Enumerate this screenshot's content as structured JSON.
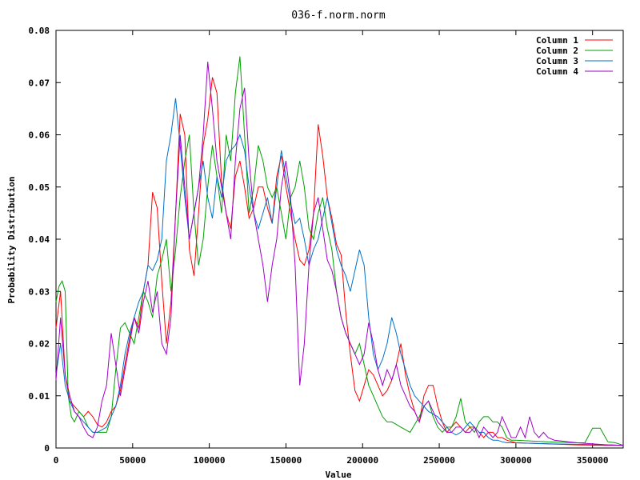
{
  "chart_data": {
    "type": "line",
    "title": "036-f.norm.norm",
    "xlabel": "Value",
    "ylabel": "Probability Distribution",
    "xlim": [
      0,
      370000
    ],
    "ylim": [
      0,
      0.08
    ],
    "xticks": [
      0,
      50000,
      100000,
      150000,
      200000,
      250000,
      300000,
      350000
    ],
    "xtick_labels": [
      "0",
      "50000",
      "100000",
      "150000",
      "200000",
      "250000",
      "300000",
      "350000"
    ],
    "yticks": [
      0,
      0.01,
      0.02,
      0.03,
      0.04,
      0.05,
      0.06,
      0.07,
      0.08
    ],
    "ytick_labels": [
      "0",
      "0.01",
      "0.02",
      "0.03",
      "0.04",
      "0.05",
      "0.06",
      "0.07",
      "0.08"
    ],
    "grid": false,
    "legend_position": "top-right",
    "series": [
      {
        "name": "Column 1",
        "color": "#ff0000",
        "x": [
          0,
          3000,
          6000,
          9000,
          12000,
          15000,
          18000,
          21000,
          24000,
          27000,
          30000,
          33000,
          36000,
          39000,
          42000,
          45000,
          48000,
          51000,
          54000,
          57000,
          60000,
          63000,
          66000,
          69000,
          72000,
          75000,
          78000,
          81000,
          84000,
          87000,
          90000,
          93000,
          96000,
          99000,
          102000,
          105000,
          108000,
          111000,
          114000,
          117000,
          120000,
          123000,
          126000,
          129000,
          132000,
          135000,
          138000,
          141000,
          144000,
          147000,
          150000,
          153000,
          156000,
          159000,
          162000,
          165000,
          168000,
          171000,
          174000,
          177000,
          180000,
          183000,
          186000,
          189000,
          192000,
          195000,
          198000,
          201000,
          204000,
          207000,
          210000,
          213000,
          216000,
          219000,
          222000,
          225000,
          228000,
          231000,
          234000,
          237000,
          240000,
          243000,
          246000,
          249000,
          252000,
          255000,
          258000,
          261000,
          264000,
          267000,
          270000,
          273000,
          276000,
          279000,
          282000,
          285000,
          288000,
          291000,
          294000,
          300000,
          320000,
          340000,
          360000,
          370000
        ],
        "y": [
          0.023,
          0.03,
          0.014,
          0.009,
          0.008,
          0.007,
          0.006,
          0.007,
          0.006,
          0.0045,
          0.004,
          0.005,
          0.007,
          0.008,
          0.011,
          0.016,
          0.021,
          0.025,
          0.023,
          0.03,
          0.035,
          0.049,
          0.046,
          0.032,
          0.02,
          0.028,
          0.045,
          0.064,
          0.06,
          0.038,
          0.033,
          0.045,
          0.058,
          0.063,
          0.071,
          0.068,
          0.051,
          0.045,
          0.042,
          0.052,
          0.055,
          0.05,
          0.044,
          0.046,
          0.05,
          0.05,
          0.046,
          0.043,
          0.052,
          0.056,
          0.05,
          0.045,
          0.04,
          0.036,
          0.035,
          0.038,
          0.045,
          0.062,
          0.056,
          0.048,
          0.044,
          0.039,
          0.037,
          0.026,
          0.018,
          0.011,
          0.009,
          0.012,
          0.015,
          0.014,
          0.012,
          0.01,
          0.011,
          0.013,
          0.016,
          0.02,
          0.014,
          0.01,
          0.007,
          0.005,
          0.01,
          0.012,
          0.012,
          0.008,
          0.005,
          0.003,
          0.004,
          0.005,
          0.004,
          0.003,
          0.004,
          0.004,
          0.003,
          0.002,
          0.003,
          0.003,
          0.002,
          0.002,
          0.0015,
          0.001,
          0.0008,
          0.0006,
          0.0005,
          0.0005
        ]
      },
      {
        "name": "Column 2",
        "color": "#00a000",
        "x": [
          0,
          2000,
          4000,
          6000,
          8000,
          10000,
          12000,
          15000,
          18000,
          21000,
          24000,
          27000,
          30000,
          33000,
          36000,
          39000,
          42000,
          45000,
          48000,
          51000,
          54000,
          57000,
          60000,
          63000,
          66000,
          69000,
          72000,
          75000,
          78000,
          81000,
          84000,
          87000,
          90000,
          93000,
          96000,
          99000,
          102000,
          105000,
          108000,
          111000,
          114000,
          117000,
          120000,
          123000,
          126000,
          129000,
          132000,
          135000,
          138000,
          141000,
          144000,
          147000,
          150000,
          153000,
          156000,
          159000,
          162000,
          165000,
          168000,
          171000,
          174000,
          177000,
          180000,
          183000,
          186000,
          189000,
          192000,
          195000,
          198000,
          201000,
          204000,
          207000,
          210000,
          213000,
          216000,
          219000,
          222000,
          225000,
          228000,
          231000,
          234000,
          237000,
          240000,
          243000,
          246000,
          249000,
          252000,
          255000,
          258000,
          261000,
          264000,
          267000,
          270000,
          273000,
          276000,
          279000,
          282000,
          285000,
          288000,
          291000,
          294000,
          297000,
          300000,
          320000,
          340000,
          345000,
          350000,
          355000,
          360000,
          365000,
          370000
        ],
        "y": [
          0.028,
          0.031,
          0.032,
          0.03,
          0.01,
          0.006,
          0.005,
          0.007,
          0.006,
          0.004,
          0.003,
          0.003,
          0.003,
          0.003,
          0.006,
          0.015,
          0.023,
          0.024,
          0.022,
          0.02,
          0.025,
          0.03,
          0.028,
          0.025,
          0.033,
          0.036,
          0.04,
          0.03,
          0.038,
          0.048,
          0.055,
          0.06,
          0.045,
          0.035,
          0.04,
          0.05,
          0.058,
          0.052,
          0.045,
          0.06,
          0.055,
          0.068,
          0.075,
          0.06,
          0.045,
          0.05,
          0.058,
          0.055,
          0.05,
          0.048,
          0.05,
          0.045,
          0.04,
          0.048,
          0.05,
          0.055,
          0.05,
          0.042,
          0.04,
          0.045,
          0.048,
          0.042,
          0.038,
          0.03,
          0.025,
          0.022,
          0.02,
          0.018,
          0.02,
          0.016,
          0.012,
          0.01,
          0.008,
          0.006,
          0.005,
          0.005,
          0.0045,
          0.004,
          0.0035,
          0.003,
          0.0045,
          0.006,
          0.008,
          0.009,
          0.006,
          0.004,
          0.003,
          0.004,
          0.004,
          0.006,
          0.0095,
          0.005,
          0.004,
          0.003,
          0.005,
          0.006,
          0.006,
          0.005,
          0.005,
          0.004,
          0.002,
          0.0015,
          0.0015,
          0.0012,
          0.001,
          0.001,
          0.0038,
          0.0038,
          0.0012,
          0.001,
          0.0005
        ]
      },
      {
        "name": "Column 3",
        "color": "#0070c8",
        "x": [
          0,
          3000,
          6000,
          9000,
          12000,
          15000,
          18000,
          21000,
          24000,
          27000,
          30000,
          33000,
          36000,
          39000,
          42000,
          45000,
          48000,
          51000,
          54000,
          57000,
          60000,
          63000,
          66000,
          69000,
          72000,
          75000,
          78000,
          81000,
          84000,
          87000,
          90000,
          93000,
          96000,
          99000,
          102000,
          105000,
          108000,
          111000,
          114000,
          117000,
          120000,
          123000,
          126000,
          129000,
          132000,
          135000,
          138000,
          141000,
          144000,
          147000,
          150000,
          153000,
          156000,
          159000,
          162000,
          165000,
          168000,
          171000,
          174000,
          177000,
          180000,
          183000,
          186000,
          189000,
          192000,
          195000,
          198000,
          201000,
          204000,
          207000,
          210000,
          213000,
          216000,
          219000,
          222000,
          225000,
          228000,
          231000,
          234000,
          237000,
          240000,
          243000,
          246000,
          249000,
          252000,
          255000,
          258000,
          261000,
          264000,
          267000,
          270000,
          273000,
          276000,
          279000,
          282000,
          285000,
          288000,
          291000,
          294000,
          300000,
          320000,
          340000,
          360000,
          370000
        ],
        "y": [
          0.014,
          0.02,
          0.012,
          0.009,
          0.007,
          0.006,
          0.005,
          0.004,
          0.003,
          0.003,
          0.0035,
          0.004,
          0.006,
          0.008,
          0.012,
          0.018,
          0.022,
          0.025,
          0.028,
          0.03,
          0.035,
          0.034,
          0.036,
          0.04,
          0.055,
          0.06,
          0.067,
          0.058,
          0.048,
          0.04,
          0.045,
          0.05,
          0.055,
          0.048,
          0.044,
          0.052,
          0.048,
          0.055,
          0.057,
          0.058,
          0.06,
          0.057,
          0.05,
          0.045,
          0.042,
          0.045,
          0.048,
          0.043,
          0.05,
          0.057,
          0.052,
          0.047,
          0.043,
          0.044,
          0.04,
          0.035,
          0.038,
          0.04,
          0.044,
          0.048,
          0.043,
          0.038,
          0.035,
          0.033,
          0.03,
          0.034,
          0.038,
          0.035,
          0.025,
          0.018,
          0.015,
          0.017,
          0.02,
          0.025,
          0.022,
          0.018,
          0.015,
          0.012,
          0.01,
          0.009,
          0.008,
          0.007,
          0.0065,
          0.006,
          0.005,
          0.004,
          0.003,
          0.0025,
          0.003,
          0.004,
          0.005,
          0.004,
          0.003,
          0.003,
          0.002,
          0.0015,
          0.0015,
          0.0012,
          0.001,
          0.001,
          0.0008,
          0.0007,
          0.0006,
          0.0005
        ]
      },
      {
        "name": "Column 4",
        "color": "#a000c8",
        "x": [
          0,
          3000,
          6000,
          9000,
          12000,
          15000,
          18000,
          21000,
          24000,
          27000,
          30000,
          33000,
          36000,
          39000,
          42000,
          45000,
          48000,
          51000,
          54000,
          57000,
          60000,
          63000,
          66000,
          69000,
          72000,
          75000,
          78000,
          81000,
          84000,
          87000,
          90000,
          93000,
          96000,
          99000,
          102000,
          105000,
          108000,
          111000,
          114000,
          117000,
          120000,
          123000,
          126000,
          129000,
          132000,
          135000,
          138000,
          141000,
          144000,
          147000,
          150000,
          153000,
          156000,
          159000,
          162000,
          165000,
          168000,
          171000,
          174000,
          177000,
          180000,
          183000,
          186000,
          189000,
          192000,
          195000,
          198000,
          201000,
          204000,
          207000,
          210000,
          213000,
          216000,
          219000,
          222000,
          225000,
          228000,
          231000,
          234000,
          237000,
          240000,
          243000,
          246000,
          249000,
          252000,
          255000,
          258000,
          261000,
          264000,
          267000,
          270000,
          273000,
          276000,
          279000,
          282000,
          285000,
          288000,
          291000,
          294000,
          297000,
          300000,
          303000,
          306000,
          309000,
          312000,
          315000,
          318000,
          321000,
          325000,
          340000,
          360000,
          370000
        ],
        "y": [
          0.013,
          0.025,
          0.014,
          0.01,
          0.007,
          0.006,
          0.004,
          0.0025,
          0.002,
          0.004,
          0.009,
          0.012,
          0.022,
          0.016,
          0.01,
          0.015,
          0.02,
          0.025,
          0.022,
          0.028,
          0.032,
          0.026,
          0.03,
          0.02,
          0.018,
          0.025,
          0.045,
          0.06,
          0.05,
          0.04,
          0.045,
          0.05,
          0.06,
          0.074,
          0.065,
          0.055,
          0.05,
          0.045,
          0.04,
          0.055,
          0.065,
          0.069,
          0.055,
          0.045,
          0.04,
          0.035,
          0.028,
          0.035,
          0.04,
          0.05,
          0.055,
          0.048,
          0.035,
          0.012,
          0.02,
          0.035,
          0.045,
          0.048,
          0.042,
          0.036,
          0.034,
          0.03,
          0.025,
          0.022,
          0.02,
          0.018,
          0.016,
          0.018,
          0.024,
          0.02,
          0.015,
          0.012,
          0.015,
          0.013,
          0.016,
          0.012,
          0.01,
          0.008,
          0.007,
          0.005,
          0.008,
          0.009,
          0.007,
          0.005,
          0.004,
          0.003,
          0.003,
          0.004,
          0.004,
          0.003,
          0.003,
          0.004,
          0.002,
          0.004,
          0.003,
          0.002,
          0.003,
          0.006,
          0.004,
          0.002,
          0.002,
          0.004,
          0.002,
          0.006,
          0.003,
          0.002,
          0.003,
          0.002,
          0.0015,
          0.001,
          0.0006,
          0.0005
        ]
      }
    ]
  }
}
